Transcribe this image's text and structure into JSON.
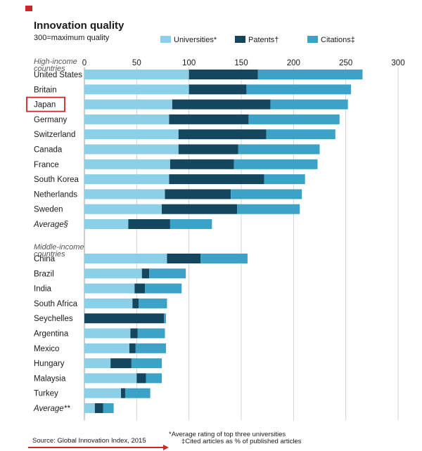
{
  "chart_data": {
    "type": "bar",
    "orientation": "horizontal",
    "stacked": true,
    "title": "Innovation quality",
    "subtitle": "300=maximum quality",
    "xlim": [
      0,
      300
    ],
    "xticks": [
      "0",
      "50",
      "100",
      "150",
      "200",
      "250",
      "300"
    ],
    "legend": {
      "placement": "top",
      "items": [
        {
          "label": "Universities*",
          "color": "#8ccfe9"
        },
        {
          "label": "Patents†",
          "color": "#14465e"
        },
        {
          "label": "Citations‡",
          "color": "#3da2c8"
        }
      ]
    },
    "groups": [
      {
        "label": "High-income countries",
        "label_lines": [
          "High-income",
          "countries"
        ],
        "rows": [
          {
            "name": "United States",
            "values": [
              100,
              66,
              100
            ]
          },
          {
            "name": "Britain",
            "values": [
              100,
              55,
              100
            ]
          },
          {
            "name": "Japan",
            "values": [
              84,
              94,
              74
            ],
            "highlighted": true
          },
          {
            "name": "Germany",
            "values": [
              81,
              76,
              87
            ]
          },
          {
            "name": "Switzerland",
            "values": [
              90,
              84,
              66
            ]
          },
          {
            "name": "Canada",
            "values": [
              90,
              57,
              78
            ]
          },
          {
            "name": "France",
            "values": [
              82,
              61,
              80
            ]
          },
          {
            "name": "South Korea",
            "values": [
              81,
              91,
              39
            ]
          },
          {
            "name": "Netherlands",
            "values": [
              77,
              63,
              68
            ]
          },
          {
            "name": "Sweden",
            "values": [
              74,
              72,
              60
            ]
          },
          {
            "name": "Average§",
            "values": [
              42,
              40,
              40
            ],
            "average": true
          }
        ]
      },
      {
        "label": "Middle-income countries",
        "label_lines": [
          "Middle-income",
          "countries"
        ],
        "rows": [
          {
            "name": "China",
            "values": [
              79,
              32,
              45
            ]
          },
          {
            "name": "Brazil",
            "values": [
              55,
              7,
              35
            ]
          },
          {
            "name": "India",
            "values": [
              48,
              10,
              35
            ]
          },
          {
            "name": "South Africa",
            "values": [
              46,
              6,
              27
            ]
          },
          {
            "name": "Seychelles",
            "values": [
              0,
              76,
              2
            ]
          },
          {
            "name": "Argentina",
            "values": [
              44,
              7,
              26
            ]
          },
          {
            "name": "Mexico",
            "values": [
              43,
              6,
              29
            ]
          },
          {
            "name": "Hungary",
            "values": [
              25,
              20,
              29
            ]
          },
          {
            "name": "Malaysia",
            "values": [
              50,
              9,
              15
            ]
          },
          {
            "name": "Turkey",
            "values": [
              35,
              4,
              24
            ]
          },
          {
            "name": "Average**",
            "values": [
              10,
              8,
              10
            ],
            "average": true
          }
        ]
      }
    ],
    "footnotes": [
      "*Average rating of top three universities",
      "‡Cited articles as % of published articles"
    ],
    "source": "Source: Global Innovation Index, 2015",
    "colors": {
      "universities": "#8ccfe9",
      "patents": "#14465e",
      "citations": "#3da2c8",
      "accent": "#cc2727",
      "text": "#1a1a1a",
      "group_label": "#555555"
    }
  }
}
